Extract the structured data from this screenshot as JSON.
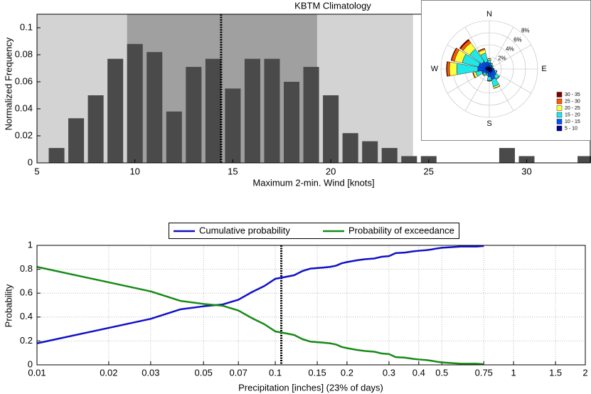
{
  "chart_data": [
    {
      "type": "bar",
      "title": "KBTM Climatology",
      "x_label": "Maximum 2-min. Wind [knots]",
      "y_label": "Normalized Frequency",
      "x": [
        6,
        7,
        8,
        9,
        10,
        11,
        12,
        13,
        14,
        15,
        16,
        17,
        18,
        19,
        20,
        21,
        22,
        23,
        24,
        25,
        29,
        30,
        33
      ],
      "values": [
        0.011,
        0.033,
        0.05,
        0.077,
        0.088,
        0.082,
        0.038,
        0.071,
        0.077,
        0.055,
        0.077,
        0.077,
        0.06,
        0.071,
        0.05,
        0.022,
        0.016,
        0.011,
        0.005,
        0.005,
        0.011,
        0.005,
        0.005
      ],
      "color": "#4a4a4a",
      "xlim": [
        5,
        33.25
      ],
      "xticks": [
        5,
        10,
        15,
        20,
        25,
        30
      ],
      "ylim": [
        0,
        0.11
      ],
      "yticks": [
        0,
        0.02,
        0.04,
        0.06,
        0.08,
        0.1
      ],
      "bands": [
        {
          "range": [
            5,
            24.2
          ],
          "color": "#d3d3d3"
        },
        {
          "range": [
            9.6,
            19.3
          ],
          "color": "#a0a0a0"
        }
      ],
      "vline": 14.4
    },
    {
      "type": "windrose",
      "angles": [
        0,
        22.5,
        45,
        67.5,
        90,
        112.5,
        135,
        157.5,
        180,
        202.5,
        225,
        247.5,
        270,
        292.5,
        315,
        337.5
      ],
      "rlim": [
        0,
        8
      ],
      "rticks": [
        {
          "value": 2,
          "label": "2%"
        },
        {
          "value": 4,
          "label": "4%"
        },
        {
          "value": 6,
          "label": "6%"
        },
        {
          "value": 8,
          "label": "8%"
        }
      ],
      "direction_labels": [
        {
          "angle": 0,
          "label": "N"
        },
        {
          "angle": 90,
          "label": "E"
        },
        {
          "angle": 180,
          "label": "S"
        },
        {
          "angle": 270,
          "label": "W"
        }
      ],
      "series": [
        {
          "name": "5 - 10",
          "color": "#00008f",
          "values": [
            0.4,
            0.3,
            0.3,
            0.3,
            0.4,
            0.5,
            0.6,
            0.6,
            0.5,
            0.4,
            0.4,
            0.5,
            0.6,
            0.6,
            0.5,
            0.4
          ]
        },
        {
          "name": "10 - 15",
          "color": "#0050ff",
          "values": [
            0.6,
            0.4,
            0.3,
            0.2,
            0.3,
            0.5,
            0.8,
            1.2,
            0.8,
            0.4,
            0.5,
            0.8,
            1.3,
            1.2,
            1.0,
            0.8
          ]
        },
        {
          "name": "15 - 20",
          "color": "#20e8e8",
          "values": [
            0.5,
            0.3,
            0.2,
            0.1,
            0.1,
            0.3,
            0.6,
            1.2,
            0.6,
            0.3,
            0.4,
            1.0,
            3.5,
            2.8,
            2.5,
            1.5
          ]
        },
        {
          "name": "20 - 25",
          "color": "#ffff40",
          "values": [
            0.2,
            0,
            0,
            0,
            0,
            0,
            0.1,
            0.3,
            0.1,
            0,
            0.1,
            0.4,
            1.2,
            1.3,
            1.3,
            0.6
          ]
        },
        {
          "name": "25 - 30",
          "color": "#ff5a00",
          "values": [
            0,
            0,
            0,
            0,
            0,
            0,
            0,
            0,
            0,
            0,
            0,
            0.1,
            0.4,
            0.5,
            0.5,
            0.2
          ]
        },
        {
          "name": "30 - 35",
          "color": "#800000",
          "values": [
            0,
            0,
            0,
            0,
            0,
            0,
            0,
            0,
            0,
            0,
            0,
            0,
            0.1,
            0.1,
            0.2,
            0
          ]
        }
      ]
    },
    {
      "type": "line",
      "x_label": "Precipitation [inches] (23% of days)",
      "y_label": "Probability",
      "x": [
        0.01,
        0.03,
        0.04,
        0.05,
        0.06,
        0.07,
        0.08,
        0.09,
        0.1,
        0.11,
        0.12,
        0.13,
        0.14,
        0.15,
        0.16,
        0.17,
        0.18,
        0.19,
        0.2,
        0.22,
        0.24,
        0.26,
        0.28,
        0.3,
        0.32,
        0.35,
        0.38,
        0.4,
        0.43,
        0.45,
        0.48,
        0.5,
        0.55,
        0.6,
        0.7,
        0.75
      ],
      "series": [
        {
          "name": "Cumulative probability",
          "color": "#1010c8",
          "values": [
            0.18,
            0.385,
            0.465,
            0.49,
            0.505,
            0.545,
            0.61,
            0.66,
            0.72,
            0.735,
            0.75,
            0.785,
            0.805,
            0.81,
            0.815,
            0.82,
            0.83,
            0.85,
            0.86,
            0.875,
            0.885,
            0.89,
            0.905,
            0.91,
            0.935,
            0.94,
            0.95,
            0.955,
            0.96,
            0.965,
            0.975,
            0.98,
            0.985,
            0.99,
            0.99,
            0.995
          ]
        },
        {
          "name": "Probability of exceedance",
          "color": "#178a17",
          "values": [
            0.82,
            0.615,
            0.535,
            0.51,
            0.495,
            0.455,
            0.39,
            0.34,
            0.28,
            0.265,
            0.25,
            0.215,
            0.195,
            0.19,
            0.185,
            0.18,
            0.17,
            0.15,
            0.14,
            0.125,
            0.115,
            0.11,
            0.095,
            0.09,
            0.065,
            0.06,
            0.05,
            0.045,
            0.04,
            0.035,
            0.025,
            0.02,
            0.015,
            0.01,
            0.01,
            0.005
          ]
        }
      ],
      "xscale": "log",
      "xlim": [
        0.01,
        2
      ],
      "xticks": [
        0.01,
        0.02,
        0.03,
        0.05,
        0.07,
        0.1,
        0.15,
        0.2,
        0.3,
        0.4,
        0.5,
        0.75,
        1,
        1.5,
        2
      ],
      "ylim": [
        0,
        1
      ],
      "yticks": [
        0,
        0.2,
        0.4,
        0.6,
        0.8,
        1
      ],
      "grid": true,
      "legend": "top",
      "vline": 0.106
    }
  ]
}
